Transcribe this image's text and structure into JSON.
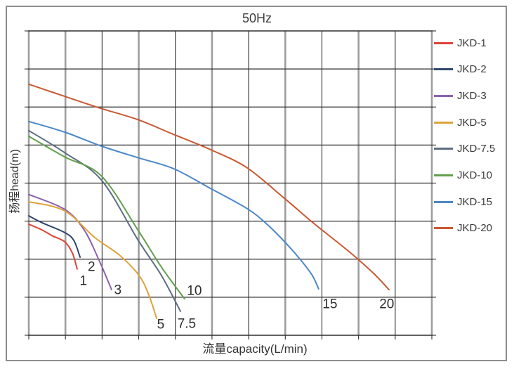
{
  "chart_data": {
    "type": "line",
    "title": "50Hz",
    "xlabel": "流量capacity(L/min)",
    "ylabel": "扬程head(m)",
    "axis_tick_labels": "none",
    "legend_position": "right",
    "grid": {
      "columns": 11,
      "rows": 8,
      "major_gray_columns": [
        0,
        1,
        3,
        5,
        7,
        9,
        11
      ]
    },
    "units_note": "points given in grid-cell units (axes carry no numeric labels); x = columns from left axis, y = rows up from bottom axis",
    "series": [
      {
        "name": "JKD-1",
        "color": "#dc4437",
        "end_label": "1",
        "end_label_pos": [
          1.49,
          1.42
        ],
        "points": [
          [
            0,
            2.92
          ],
          [
            0.36,
            2.77
          ],
          [
            0.65,
            2.61
          ],
          [
            0.98,
            2.46
          ],
          [
            1.19,
            2.16
          ],
          [
            1.32,
            1.74
          ]
        ]
      },
      {
        "name": "JKD-2",
        "color": "#31486e",
        "end_label": "2",
        "end_label_pos": [
          1.71,
          1.79
        ],
        "points": [
          [
            0,
            3.14
          ],
          [
            0.36,
            2.96
          ],
          [
            0.98,
            2.7
          ],
          [
            1.23,
            2.49
          ],
          [
            1.4,
            2.05
          ]
        ]
      },
      {
        "name": "JKD-3",
        "color": "#8a64aa",
        "end_label": "3",
        "end_label_pos": [
          2.43,
          1.18
        ],
        "points": [
          [
            0,
            3.7
          ],
          [
            0.98,
            3.31
          ],
          [
            1.51,
            2.77
          ],
          [
            1.9,
            2.01
          ],
          [
            2.26,
            1.2
          ]
        ]
      },
      {
        "name": "JKD-5",
        "color": "#dfa33c",
        "end_label": "5",
        "end_label_pos": [
          3.6,
          0.28
        ],
        "points": [
          [
            0,
            3.51
          ],
          [
            0.98,
            3.27
          ],
          [
            1.8,
            2.57
          ],
          [
            2.47,
            2.11
          ],
          [
            3.01,
            1.57
          ],
          [
            3.28,
            1.05
          ],
          [
            3.49,
            0.44
          ]
        ]
      },
      {
        "name": "JKD-7.5",
        "color": "#5d6e81",
        "end_label": "7.5",
        "end_label_pos": [
          4.31,
          0.3
        ],
        "points": [
          [
            0,
            5.38
          ],
          [
            0.98,
            4.8
          ],
          [
            1.99,
            4.07
          ],
          [
            2.99,
            2.49
          ],
          [
            3.62,
            1.57
          ],
          [
            4.14,
            0.63
          ]
        ]
      },
      {
        "name": "JKD-10",
        "color": "#61a04a",
        "end_label": "10",
        "end_label_pos": [
          4.52,
          1.16
        ],
        "points": [
          [
            0,
            5.23
          ],
          [
            0.98,
            4.69
          ],
          [
            1.99,
            4.18
          ],
          [
            2.99,
            2.75
          ],
          [
            3.62,
            1.79
          ],
          [
            4.25,
            0.96
          ]
        ]
      },
      {
        "name": "JKD-15",
        "color": "#4b87c8",
        "end_label": "15",
        "end_label_pos": [
          8.22,
          0.81
        ],
        "points": [
          [
            0,
            5.62
          ],
          [
            0.98,
            5.34
          ],
          [
            1.99,
            4.97
          ],
          [
            2.97,
            4.67
          ],
          [
            3.95,
            4.38
          ],
          [
            4.96,
            3.86
          ],
          [
            5.96,
            3.33
          ],
          [
            6.5,
            2.92
          ],
          [
            7.0,
            2.44
          ],
          [
            7.42,
            1.98
          ],
          [
            7.74,
            1.57
          ],
          [
            7.91,
            1.22
          ]
        ]
      },
      {
        "name": "JKD-20",
        "color": "#c75a33",
        "end_label": "20",
        "end_label_pos": [
          9.77,
          0.81
        ],
        "points": [
          [
            0,
            6.6
          ],
          [
            0.98,
            6.28
          ],
          [
            1.95,
            5.97
          ],
          [
            2.97,
            5.67
          ],
          [
            3.95,
            5.28
          ],
          [
            4.96,
            4.88
          ],
          [
            5.96,
            4.4
          ],
          [
            7.0,
            3.58
          ],
          [
            7.78,
            2.94
          ],
          [
            8.6,
            2.31
          ],
          [
            9.03,
            1.96
          ],
          [
            9.47,
            1.57
          ],
          [
            9.83,
            1.2
          ]
        ]
      }
    ]
  }
}
